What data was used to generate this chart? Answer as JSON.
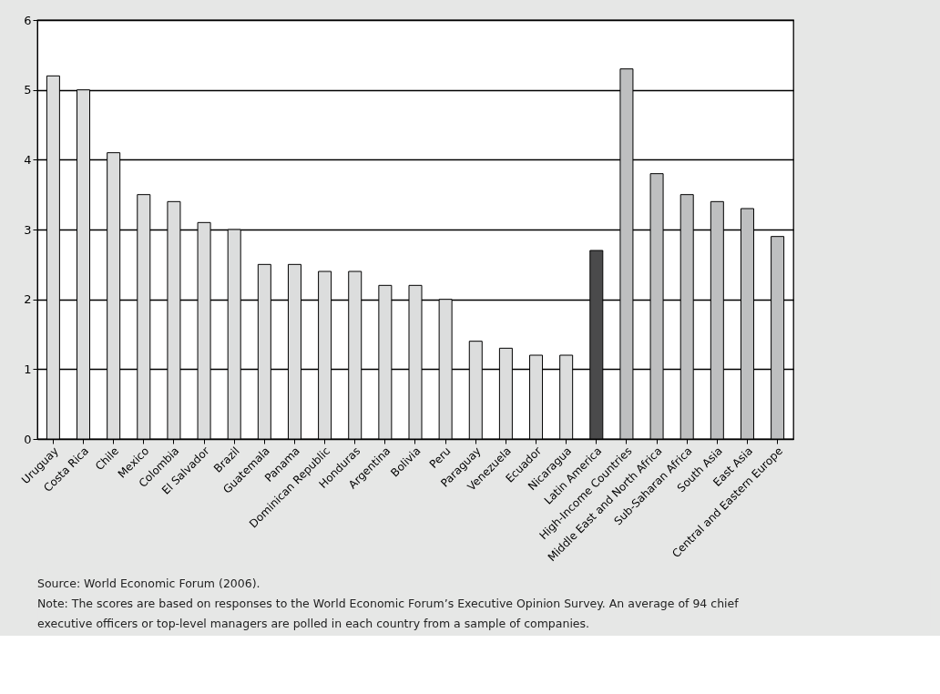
{
  "chart_data": {
    "type": "bar",
    "categories": [
      "Uruguay",
      "Costa Rica",
      "Chile",
      "Mexico",
      "Colombia",
      "El Salvador",
      "Brazil",
      "Guatemala",
      "Panama",
      "Dominican Republic",
      "Honduras",
      "Argentina",
      "Bolivia",
      "Peru",
      "Paraguay",
      "Venezuela",
      "Ecuador",
      "Nicaragua",
      "Latin America",
      "High-Income Countries",
      "Middle East and North Africa",
      "Sub-Saharan Africa",
      "South Asia",
      "East Asia",
      "Central and Eastern Europe"
    ],
    "values": [
      5.2,
      5.0,
      4.1,
      3.5,
      3.4,
      3.1,
      3.0,
      2.5,
      2.5,
      2.4,
      2.4,
      2.2,
      2.2,
      2.0,
      1.4,
      1.3,
      1.2,
      1.2,
      2.7,
      5.3,
      3.8,
      3.5,
      3.4,
      3.3,
      2.9
    ],
    "colors": [
      "#dcdddd",
      "#dcdddd",
      "#dcdddd",
      "#dcdddd",
      "#dcdddd",
      "#dcdddd",
      "#dcdddd",
      "#dcdddd",
      "#dcdddd",
      "#dcdddd",
      "#dcdddd",
      "#dcdddd",
      "#dcdddd",
      "#dcdddd",
      "#dcdddd",
      "#dcdddd",
      "#dcdddd",
      "#dcdddd",
      "#4a4a4b",
      "#bebfc0",
      "#bebfc0",
      "#bebfc0",
      "#bebfc0",
      "#bebfc0",
      "#bebfc0"
    ],
    "ylim": [
      0,
      6
    ],
    "yticks": [
      0,
      1,
      2,
      3,
      4,
      5,
      6
    ],
    "grid": "y",
    "legend": false,
    "annotations": [
      "Source: World Economic Forum (2006).",
      "Note: The scores are based on responses to the World Economic Forum’s Executive Opinion Survey. An average of 94 chief executive officers or top-level managers are polled in each country from a sample of companies."
    ]
  }
}
